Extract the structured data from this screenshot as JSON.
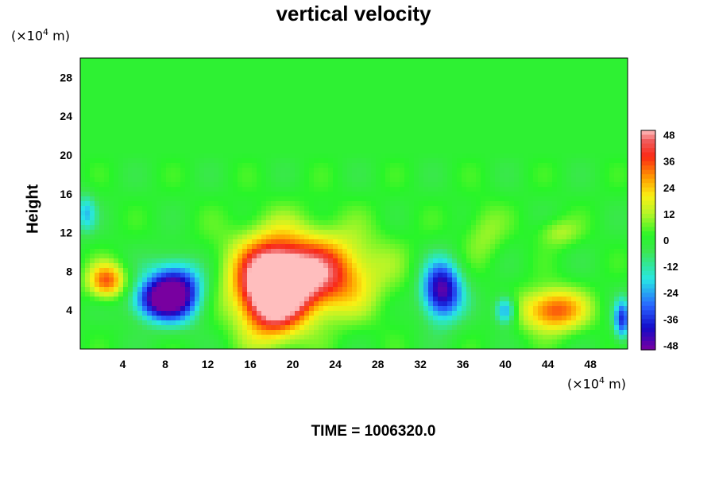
{
  "chart_data": {
    "type": "heatmap",
    "title": "vertical velocity",
    "ylabel": "Height",
    "y_unit": "(×10^4 m)",
    "x_unit": "(×10^4 m)",
    "time_label": "TIME = 1006320.0",
    "xlim": [
      0,
      51.5
    ],
    "ylim": [
      0,
      30
    ],
    "x_ticks": [
      "4",
      "8",
      "12",
      "16",
      "20",
      "24",
      "28",
      "32",
      "36",
      "40",
      "44",
      "48"
    ],
    "y_ticks": [
      "4",
      "8",
      "12",
      "16",
      "20",
      "24",
      "28"
    ],
    "colorbar": {
      "range": [
        -50,
        50
      ],
      "ticks": [
        "48",
        "36",
        "24",
        "12",
        "0",
        "-12",
        "-24",
        "-36",
        "-48"
      ]
    },
    "features": [
      {
        "x": 18,
        "y": 6,
        "sx": 3.0,
        "sy": 4.5,
        "value": 60
      },
      {
        "x": 22,
        "y": 7.5,
        "sx": 4.5,
        "sy": 3.5,
        "value": 30
      },
      {
        "x": 21,
        "y": 8,
        "sx": 8,
        "sy": 5,
        "value": 18
      },
      {
        "x": 2.5,
        "y": 7,
        "sx": 1.8,
        "sy": 1.8,
        "value": 34
      },
      {
        "x": 44.5,
        "y": 4,
        "sx": 3,
        "sy": 2.2,
        "value": 36
      },
      {
        "x": 9,
        "y": 6,
        "sx": 2.6,
        "sy": 3.0,
        "value": -50
      },
      {
        "x": 7,
        "y": 5,
        "sx": 2.5,
        "sy": 2.0,
        "value": -30
      },
      {
        "x": 34,
        "y": 6,
        "sx": 1.9,
        "sy": 3.0,
        "value": -50
      },
      {
        "x": 40,
        "y": 4,
        "sx": 1.0,
        "sy": 1.5,
        "value": -30
      },
      {
        "x": 51,
        "y": 3,
        "sx": 0.8,
        "sy": 2.0,
        "value": -35
      },
      {
        "x": 0.5,
        "y": 14,
        "sx": 1.0,
        "sy": 2.0,
        "value": -20
      },
      {
        "x": 38,
        "y": 12,
        "sx": 2,
        "sy": 3,
        "value": 10
      },
      {
        "x": 45,
        "y": 12,
        "sx": 2,
        "sy": 1.5,
        "value": 12
      }
    ]
  }
}
